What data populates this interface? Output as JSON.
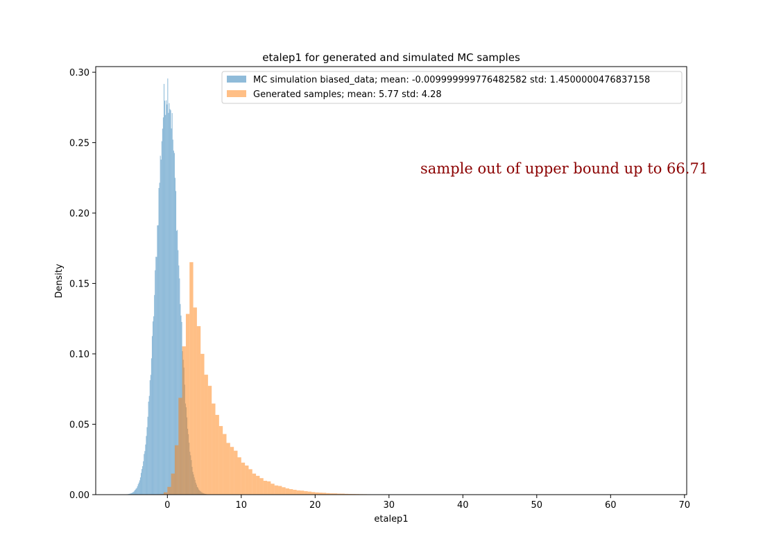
{
  "chart_data": {
    "type": "bar",
    "title": "etalep1 for generated and simulated MC samples",
    "xlabel": "etalep1",
    "ylabel": "Density",
    "xlim": [
      -9.7,
      70.3
    ],
    "ylim": [
      0,
      0.304
    ],
    "xticks": [
      0,
      10,
      20,
      30,
      40,
      50,
      60,
      70
    ],
    "yticks": [
      0.0,
      0.05,
      0.1,
      0.15,
      0.2,
      0.25,
      0.3
    ],
    "grid": false,
    "legend_position": "top-right",
    "annotation": {
      "text": "sample out of upper bound up to 66.71",
      "color": "#8b0000"
    },
    "series": [
      {
        "name": "MC simulation biased_data; mean: -0.009999999776482582 std: 1.4500000476837158",
        "color": "#1f77b4",
        "opacity": 0.5,
        "dist": {
          "kind": "normal",
          "mean": -0.01,
          "std": 1.45,
          "peak": 0.29,
          "range": [
            -6.2,
            6.2
          ],
          "bin_width": 0.1
        }
      },
      {
        "name": "Generated samples; mean: 5.77 std: 4.28",
        "color": "#ff7f0e",
        "opacity": 0.5,
        "dist": {
          "kind": "skewed",
          "mode": 3.2,
          "peak": 0.145,
          "left_scale": 1.15,
          "right_scale": 3.8,
          "range": [
            -1.5,
            36
          ],
          "bin_width": 0.5
        }
      }
    ]
  }
}
